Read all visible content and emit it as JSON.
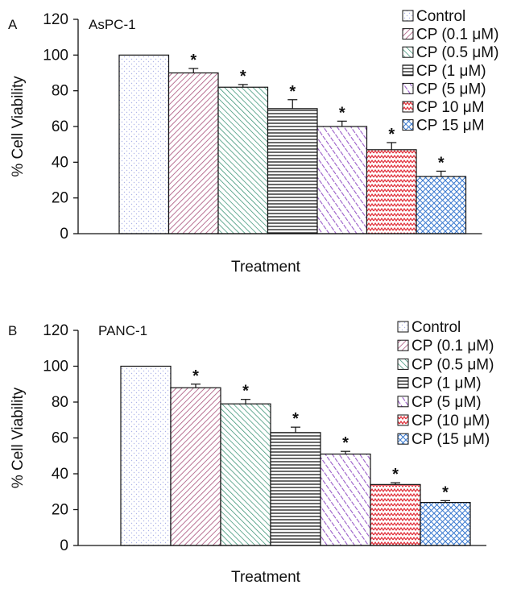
{
  "chart_data": [
    {
      "type": "bar",
      "panel_label": "A",
      "title": "AsPC-1",
      "xlabel": "Treatment",
      "ylabel": "% Cell Viability",
      "ylim": [
        0,
        120
      ],
      "yticks": [
        0,
        20,
        40,
        60,
        80,
        100,
        120
      ],
      "grid": false,
      "legend_position": "top-right",
      "categories": [
        "Control",
        "CP (0.1 μM)",
        "CP (0.5 μM)",
        "CP (1 μM)",
        "CP (5 μM)",
        "CP 10 μM",
        "CP 15 μM"
      ],
      "values": [
        100,
        90,
        82,
        70,
        60,
        47,
        32
      ],
      "errors": [
        0,
        2.5,
        1.5,
        5,
        3,
        4,
        3
      ],
      "significance": [
        "",
        "*",
        "*",
        "*",
        "*",
        "*",
        "*"
      ]
    },
    {
      "type": "bar",
      "panel_label": "B",
      "title": "PANC-1",
      "xlabel": "Treatment",
      "ylabel": "% Cell Viability",
      "ylim": [
        0,
        120
      ],
      "yticks": [
        0,
        20,
        40,
        60,
        80,
        100,
        120
      ],
      "grid": false,
      "legend_position": "top-right",
      "categories": [
        "Control",
        "CP (0.1 μM)",
        "CP (0.5 μM)",
        "CP (1 μM)",
        "CP (5 μM)",
        "CP (10 μM)",
        "CP (15 μM)"
      ],
      "values": [
        100,
        88,
        79,
        63,
        51,
        34,
        24
      ],
      "errors": [
        0,
        2,
        2.5,
        3,
        1.5,
        1,
        1
      ],
      "significance": [
        "",
        "*",
        "*",
        "*",
        "*",
        "*",
        "*"
      ]
    }
  ],
  "colors": {
    "control": "#aeb4e8",
    "cp_0_1": "#a8507a",
    "cp_0_5": "#2a8a6a",
    "cp_1": "#1a1a1a",
    "cp_5": "#9a5cc8",
    "cp_10": "#e0303a",
    "cp_15": "#3a7ad0",
    "axis": "#111111"
  }
}
